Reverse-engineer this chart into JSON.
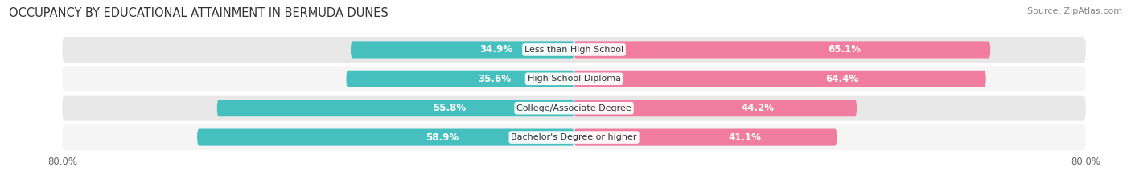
{
  "title": "OCCUPANCY BY EDUCATIONAL ATTAINMENT IN BERMUDA DUNES",
  "source": "Source: ZipAtlas.com",
  "categories": [
    "Less than High School",
    "High School Diploma",
    "College/Associate Degree",
    "Bachelor's Degree or higher"
  ],
  "owner_values": [
    34.9,
    35.6,
    55.8,
    58.9
  ],
  "renter_values": [
    65.1,
    64.4,
    44.2,
    41.1
  ],
  "owner_color": "#46BFBF",
  "renter_color": "#F07CA0",
  "axis_left_label": "80.0%",
  "axis_right_label": "80.0%",
  "bar_height": 0.58,
  "row_bg_color_odd": "#e8e8e8",
  "row_bg_color_even": "#f5f5f5",
  "background_color": "#ffffff",
  "title_fontsize": 10.5,
  "source_fontsize": 8,
  "label_fontsize": 8.5,
  "bar_label_fontsize": 8.5,
  "category_fontsize": 8,
  "white_label_threshold": 15.0,
  "xlim": 80.0
}
